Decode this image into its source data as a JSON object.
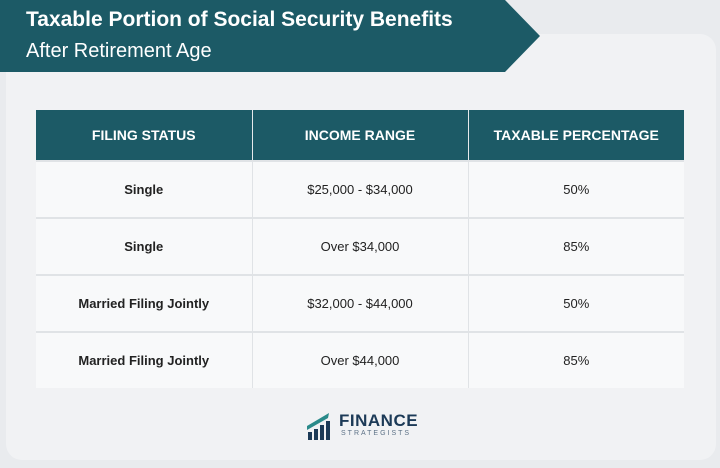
{
  "header": {
    "title": "Taxable Portion of Social Security Benefits",
    "subtitle": "After Retirement Age"
  },
  "table": {
    "columns": [
      "FILING STATUS",
      "INCOME RANGE",
      "TAXABLE PERCENTAGE"
    ],
    "rows": [
      [
        "Single",
        "$25,000 - $34,000",
        "50%"
      ],
      [
        "Single",
        "Over $34,000",
        "85%"
      ],
      [
        "Married Filing Jointly",
        "$32,000 - $44,000",
        "50%"
      ],
      [
        "Married Filing Jointly",
        "Over $44,000",
        "85%"
      ]
    ]
  },
  "logo": {
    "line1": "FINANCE",
    "line2": "STRATEGISTS",
    "icon": "finance-strategists-logo-icon"
  },
  "colors": {
    "brand": "#1c5a66",
    "background": "#e9ebee",
    "row_background": "#f8f9fa"
  }
}
